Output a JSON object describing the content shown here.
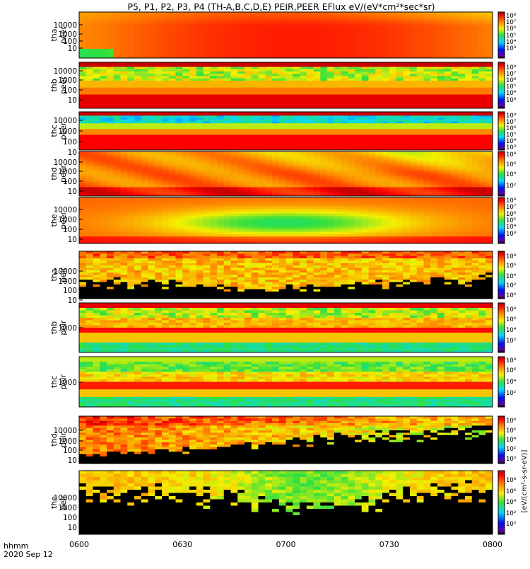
{
  "title": "P5, P1, P2, P3, P4 (TH-A,B,C,D,E) PEIR,PEER EFlux eV/(eV*cm²*sec*sr)",
  "time_axis": {
    "label_line1": "hhmm",
    "label_line2": "2020 Sep 12",
    "ticks": [
      "0600",
      "0630",
      "0700",
      "0730",
      "0800"
    ]
  },
  "colorbar_label": "[eV/(cm²-s-sr-eV)]",
  "chart_data": {
    "type": "heatmap",
    "x_range": [
      "0600",
      "0800"
    ],
    "panels": [
      {
        "probe": "tha",
        "species": "peer",
        "ytick_labels": [
          "10000",
          "1000",
          "100",
          "10"
        ],
        "cbar_tick_labels": [
          "10⁸",
          "10⁷",
          "10⁶",
          "10⁵",
          "10⁴",
          "10³"
        ],
        "spectrum": "electron-smooth-a"
      },
      {
        "probe": "thb",
        "species": "peer",
        "ytick_labels": [
          "10000",
          "1000",
          "100",
          "10"
        ],
        "cbar_tick_labels": [
          "10⁸",
          "10⁷",
          "10⁶",
          "10⁵",
          "10⁴",
          "10³"
        ],
        "spectrum": "electron-banded-b"
      },
      {
        "probe": "thc",
        "species": "peer",
        "ytick_labels": [
          "10000",
          "1000",
          "100",
          "10"
        ],
        "cbar_tick_labels": [
          "10⁸",
          "10⁷",
          "10⁶",
          "10⁵",
          "10⁴",
          "10³"
        ],
        "spectrum": "electron-banded-c"
      },
      {
        "probe": "thd",
        "species": "peer",
        "ytick_labels": [
          "10000",
          "1000",
          "100",
          "10"
        ],
        "cbar_tick_labels": [
          "10⁸",
          "10⁶",
          "10⁴",
          "10²"
        ],
        "spectrum": "electron-smooth-d"
      },
      {
        "probe": "the",
        "species": "peer",
        "ytick_labels": [
          "10000",
          "1000",
          "100",
          "10"
        ],
        "cbar_tick_labels": [
          "10⁸",
          "10⁷",
          "10⁶",
          "10⁵",
          "10⁴",
          "10³"
        ],
        "spectrum": "electron-smooth-e"
      },
      {
        "probe": "tha",
        "species": "peir",
        "ytick_labels": [
          "10000",
          "1000",
          "100",
          "10"
        ],
        "cbar_tick_labels": [
          "10⁸",
          "10⁶",
          "10⁴",
          "10²",
          "10⁰"
        ],
        "spectrum": "ion-noisy-a"
      },
      {
        "probe": "thb",
        "species": "peir",
        "ytick_labels": [
          "1000"
        ],
        "cbar_tick_labels": [
          "10⁸",
          "10⁶",
          "10⁴",
          "10²"
        ],
        "spectrum": "ion-banded-b"
      },
      {
        "probe": "thc",
        "species": "peir",
        "ytick_labels": [
          "1000"
        ],
        "cbar_tick_labels": [
          "10⁸",
          "10⁶",
          "10⁴",
          "10²"
        ],
        "spectrum": "ion-banded-c"
      },
      {
        "probe": "thd",
        "species": "peir",
        "ytick_labels": [
          "10000",
          "1000",
          "100",
          "10"
        ],
        "cbar_tick_labels": [
          "10⁸",
          "10⁶",
          "10⁴",
          "10²",
          "10⁰"
        ],
        "spectrum": "ion-noisy-d"
      },
      {
        "probe": "the",
        "species": "peir",
        "ytick_labels": [
          "10000",
          "1000",
          "100",
          "10"
        ],
        "cbar_tick_labels": [
          "10⁸",
          "10⁶",
          "10⁴",
          "10²",
          "10⁰"
        ],
        "spectrum": "ion-noisy-e"
      }
    ]
  }
}
